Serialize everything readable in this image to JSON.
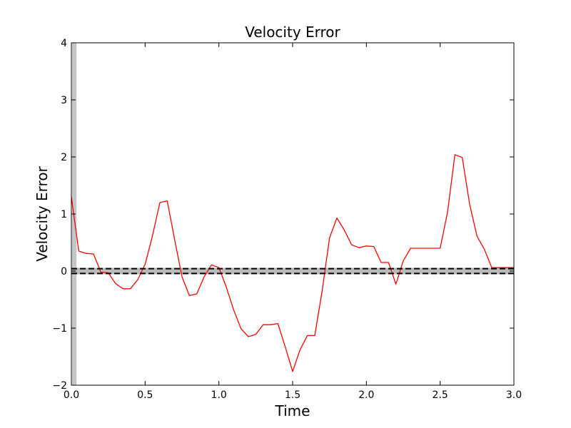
{
  "chart_data": {
    "type": "line",
    "title": "Velocity Error",
    "xlabel": "Time",
    "ylabel": "Velocity Error",
    "xlim": [
      0.0,
      3.0
    ],
    "ylim": [
      -2,
      4
    ],
    "xticks": [
      "0.0",
      "0.5",
      "1.0",
      "1.5",
      "2.0",
      "2.5",
      "3.0"
    ],
    "yticks": [
      "−2",
      "−1",
      "0",
      "1",
      "2",
      "3",
      "4"
    ],
    "grid": false,
    "legend": "none",
    "series": [
      {
        "color": "#ff0000",
        "x": [
          0.0,
          0.05,
          0.1,
          0.15,
          0.2,
          0.25,
          0.3,
          0.35,
          0.4,
          0.45,
          0.5,
          0.55,
          0.6,
          0.65,
          0.7,
          0.75,
          0.8,
          0.85,
          0.9,
          0.95,
          1.0,
          1.05,
          1.1,
          1.15,
          1.2,
          1.25,
          1.3,
          1.35,
          1.4,
          1.45,
          1.5,
          1.55,
          1.6,
          1.65,
          1.7,
          1.75,
          1.8,
          1.85,
          1.9,
          1.95,
          2.0,
          2.05,
          2.1,
          2.15,
          2.2,
          2.25,
          2.3,
          2.35,
          2.4,
          2.45,
          2.5,
          2.55,
          2.6,
          2.65,
          2.7,
          2.75,
          2.8,
          2.85,
          2.9,
          2.95,
          3.0
        ],
        "y": [
          1.3,
          0.35,
          0.31,
          0.3,
          -0.02,
          -0.03,
          -0.22,
          -0.31,
          -0.31,
          -0.15,
          0.12,
          0.62,
          1.2,
          1.23,
          0.55,
          -0.1,
          -0.43,
          -0.4,
          -0.1,
          0.11,
          0.06,
          -0.28,
          -0.68,
          -1.01,
          -1.15,
          -1.11,
          -0.94,
          -0.94,
          -0.92,
          -1.33,
          -1.76,
          -1.38,
          -1.13,
          -1.13,
          -0.35,
          0.58,
          0.93,
          0.72,
          0.46,
          0.41,
          0.44,
          0.43,
          0.15,
          0.15,
          -0.23,
          0.18,
          0.4,
          0.4,
          0.4,
          0.4,
          0.4,
          1.03,
          2.04,
          1.99,
          1.17,
          0.61,
          0.38,
          0.06,
          0.06,
          0.06,
          0.06
        ]
      }
    ],
    "reference_line": {
      "y": 0,
      "band": [
        -0.03,
        0.03
      ],
      "style": "dashed",
      "color": "#000000",
      "band_color": "#808080"
    },
    "vertical_band": {
      "x": [
        0.0,
        0.03
      ],
      "color": "#808080"
    }
  }
}
